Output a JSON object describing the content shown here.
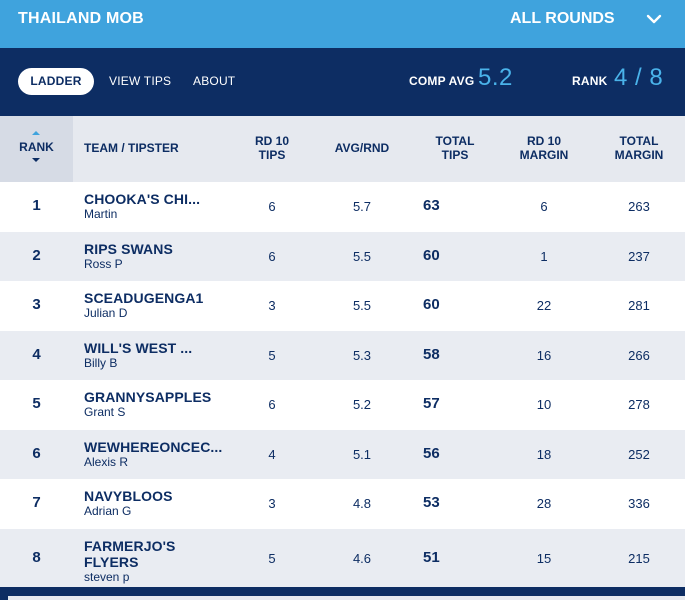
{
  "header": {
    "comp_title": "THAILAND MOB",
    "rounds_label": "ALL ROUNDS"
  },
  "nav": {
    "tabs": [
      {
        "label": "LADDER",
        "active": true
      },
      {
        "label": "VIEW TIPS",
        "active": false
      },
      {
        "label": "ABOUT",
        "active": false
      }
    ],
    "comp_avg_label": "COMP AVG",
    "comp_avg_value": "5.2",
    "rank_label": "RANK",
    "rank_value": "4 / 8"
  },
  "table": {
    "columns": {
      "rank": "RANK",
      "team": "TEAM / TIPSTER",
      "rd_tips": "RD 10\nTIPS",
      "avg": "AVG/RND",
      "total_tips": "TOTAL\nTIPS",
      "rd_margin": "RD 10\nMARGIN",
      "total_margin": "TOTAL\nMARGIN"
    },
    "rows": [
      {
        "rank": "1",
        "team": "CHOOKA'S CHI...",
        "tipster": "Martin",
        "rd_tips": "6",
        "avg": "5.7",
        "total_tips": "63",
        "rd_margin": "6",
        "total_margin": "263"
      },
      {
        "rank": "2",
        "team": "RIPS SWANS",
        "tipster": "Ross P",
        "rd_tips": "6",
        "avg": "5.5",
        "total_tips": "60",
        "rd_margin": "1",
        "total_margin": "237"
      },
      {
        "rank": "3",
        "team": "SCEADUGENGA1",
        "tipster": "Julian D",
        "rd_tips": "3",
        "avg": "5.5",
        "total_tips": "60",
        "rd_margin": "22",
        "total_margin": "281"
      },
      {
        "rank": "4",
        "team": "WILL'S WEST ...",
        "tipster": "Billy B",
        "rd_tips": "5",
        "avg": "5.3",
        "total_tips": "58",
        "rd_margin": "16",
        "total_margin": "266"
      },
      {
        "rank": "5",
        "team": "GRANNYSAPPLES",
        "tipster": "Grant S",
        "rd_tips": "6",
        "avg": "5.2",
        "total_tips": "57",
        "rd_margin": "10",
        "total_margin": "278"
      },
      {
        "rank": "6",
        "team": "WEWHEREONCEC...",
        "tipster": "Alexis R",
        "rd_tips": "4",
        "avg": "5.1",
        "total_tips": "56",
        "rd_margin": "18",
        "total_margin": "252"
      },
      {
        "rank": "7",
        "team": "NAVYBLOOS",
        "tipster": "Adrian G",
        "rd_tips": "3",
        "avg": "4.8",
        "total_tips": "53",
        "rd_margin": "28",
        "total_margin": "336"
      },
      {
        "rank": "8",
        "team": "FARMERJO'S\nFLYERS",
        "tipster": "steven p",
        "rd_tips": "5",
        "avg": "4.6",
        "total_tips": "51",
        "rd_margin": "15",
        "total_margin": "215"
      }
    ]
  },
  "icons": {
    "rounds_dropdown": "chevron-down-icon",
    "sort_up": "sort-up-icon",
    "sort_down": "sort-down-icon"
  },
  "colors": {
    "top_bar": "#3fa3dd",
    "nav_bar": "#0d2d63",
    "accent_value": "#4ab3ea",
    "row_alt": "#e9ecf2"
  }
}
